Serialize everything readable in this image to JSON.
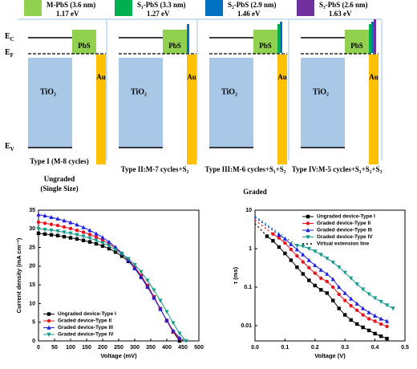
{
  "legend": [
    {
      "name": "M-PbS (3.6 nm)",
      "energy": "1.17 eV",
      "color": "#92d050"
    },
    {
      "name": "S₁-PbS (3.3 nm)",
      "energy": "1.27 eV",
      "color": "#00b050"
    },
    {
      "name": "S₂-PbS (2.9 nm)",
      "energy": "1.46 eV",
      "color": "#0070c0"
    },
    {
      "name": "S₃-PbS (2.6 nm)",
      "energy": "1.63 eV",
      "color": "#7030a0"
    }
  ],
  "levels": {
    "symbol": "E",
    "conduction": "C",
    "fermi": "F",
    "valence": "V"
  },
  "materials": {
    "tio2": "TiO₂",
    "pbs": "PbS",
    "au": "Au"
  },
  "panels": [
    {
      "caption": "Type I (M-8 cycles)"
    },
    {
      "caption": "Type II:M-7 cycles+S₂"
    },
    {
      "caption": "Type III:M-6 cycles+S₁+S₂"
    },
    {
      "caption": "Type IV:M-5 cycles+S₁+S₂+S₃"
    }
  ],
  "groups": {
    "ungraded": "Ungraded",
    "ungraded_note": "(Single Size)",
    "graded": "Graded"
  },
  "chart_data": [
    {
      "type": "line",
      "xlabel": "Voltage (mV)",
      "ylabel": "Current density (mA cm⁻²)",
      "xlim": [
        0,
        500
      ],
      "xticks": [
        0,
        50,
        100,
        150,
        200,
        250,
        300,
        350,
        400,
        450,
        500
      ],
      "ylim": [
        0,
        35
      ],
      "yticks": [
        0,
        5,
        10,
        15,
        20,
        25,
        30,
        35
      ],
      "legend": "lower-left",
      "x": [
        0,
        20,
        40,
        60,
        80,
        100,
        120,
        140,
        160,
        180,
        200,
        220,
        240,
        260,
        280,
        300,
        320,
        340,
        360,
        380,
        400,
        420,
        440,
        460
      ],
      "series": [
        {
          "name": "Ungraded device-Type I",
          "color": "#000000",
          "marker": "square",
          "values": [
            28.8,
            28.6,
            28.4,
            28.2,
            27.9,
            27.6,
            27.3,
            26.9,
            26.5,
            26.0,
            25.4,
            24.7,
            23.8,
            22.7,
            21.3,
            19.6,
            17.4,
            14.8,
            11.8,
            8.6,
            5.4,
            2.4,
            0,
            null
          ]
        },
        {
          "name": "Graded device-Type II",
          "color": "#e8141b",
          "marker": "circle",
          "values": [
            31.8,
            31.5,
            31.2,
            30.9,
            30.5,
            30.1,
            29.6,
            29.1,
            28.5,
            27.8,
            27.0,
            26.0,
            24.8,
            23.4,
            21.8,
            19.8,
            17.5,
            14.8,
            11.8,
            8.6,
            5.4,
            2.4,
            0.6,
            null
          ]
        },
        {
          "name": "Graded device-Type III",
          "color": "#1f1fe0",
          "marker": "triangle",
          "values": [
            33.8,
            33.5,
            33.1,
            32.7,
            32.2,
            31.7,
            31.1,
            30.4,
            29.6,
            28.7,
            27.7,
            26.5,
            25.1,
            23.5,
            21.6,
            19.4,
            17.0,
            14.4,
            11.5,
            8.5,
            5.5,
            2.7,
            0.8,
            null
          ]
        },
        {
          "name": "Graded device-Type IV",
          "color": "#169c8c",
          "marker": "triangle-down",
          "values": [
            30.0,
            29.8,
            29.6,
            29.4,
            29.1,
            28.8,
            28.4,
            28.0,
            27.5,
            26.9,
            26.2,
            25.4,
            24.4,
            23.3,
            22.0,
            20.4,
            18.5,
            16.2,
            13.6,
            10.8,
            7.8,
            4.8,
            2.0,
            0
          ]
        }
      ]
    },
    {
      "type": "line",
      "xlabel": "Voltage (V)",
      "ylabel": "τ (ms)",
      "xlim": [
        0,
        0.5
      ],
      "xticks": [
        {
          "value": 0,
          "label": "0.0"
        },
        0.1,
        0.2,
        0.3,
        0.4,
        0.5
      ],
      "ylim": [
        0.004,
        10
      ],
      "yticks": [
        0.01,
        0.1,
        1,
        10
      ],
      "log_y": true,
      "legend": "upper-right",
      "extension_label": "Virtual extension line",
      "series": [
        {
          "name": "Ungraded device-Type I",
          "color": "#000000",
          "marker": "square",
          "x": [
            0.04,
            0.06,
            0.08,
            0.1,
            0.12,
            0.14,
            0.16,
            0.18,
            0.2,
            0.22,
            0.24,
            0.26,
            0.28,
            0.3,
            0.32,
            0.34,
            0.36,
            0.38,
            0.4,
            0.42,
            0.44
          ],
          "values": [
            2.1,
            1.6,
            1.1,
            0.75,
            0.5,
            0.33,
            0.22,
            0.15,
            0.11,
            0.085,
            0.07,
            0.045,
            0.028,
            0.019,
            0.014,
            0.011,
            0.009,
            0.0075,
            0.0062,
            0.0053,
            0.0046
          ],
          "extension_x": [
            0,
            0.04
          ],
          "extension_values": [
            4.5,
            2.1
          ]
        },
        {
          "name": "Graded device-Type II",
          "color": "#e8141b",
          "marker": "circle",
          "x": [
            0.06,
            0.08,
            0.1,
            0.12,
            0.14,
            0.16,
            0.18,
            0.2,
            0.22,
            0.24,
            0.26,
            0.28,
            0.3,
            0.32,
            0.34,
            0.36,
            0.38,
            0.4,
            0.42,
            0.44
          ],
          "values": [
            2.4,
            1.9,
            1.4,
            0.95,
            0.65,
            0.45,
            0.32,
            0.23,
            0.17,
            0.14,
            0.1,
            0.065,
            0.045,
            0.033,
            0.025,
            0.019,
            0.015,
            0.013,
            0.011,
            0.0095
          ],
          "extension_x": [
            0,
            0.06
          ],
          "extension_values": [
            5.5,
            2.4
          ]
        },
        {
          "name": "Graded device-Type III",
          "color": "#1f1fe0",
          "marker": "triangle",
          "x": [
            0.08,
            0.1,
            0.12,
            0.14,
            0.16,
            0.18,
            0.2,
            0.22,
            0.24,
            0.26,
            0.28,
            0.3,
            0.32,
            0.34,
            0.36,
            0.38,
            0.4,
            0.42,
            0.44
          ],
          "values": [
            2.3,
            1.8,
            1.3,
            0.95,
            0.7,
            0.5,
            0.37,
            0.28,
            0.22,
            0.16,
            0.1,
            0.07,
            0.05,
            0.037,
            0.028,
            0.022,
            0.018,
            0.015,
            0.013
          ],
          "extension_x": [
            0,
            0.08
          ],
          "extension_values": [
            6.5,
            2.3
          ]
        },
        {
          "name": "Graded device-Type IV",
          "color": "#169c8c",
          "marker": "triangle-down",
          "x": [
            0.14,
            0.16,
            0.18,
            0.2,
            0.22,
            0.24,
            0.26,
            0.28,
            0.3,
            0.32,
            0.34,
            0.36,
            0.38,
            0.4,
            0.42,
            0.44,
            0.46
          ],
          "values": [
            1.2,
            1.15,
            1.0,
            0.85,
            0.7,
            0.56,
            0.44,
            0.33,
            0.24,
            0.17,
            0.12,
            0.088,
            0.066,
            0.052,
            0.042,
            0.034,
            0.028
          ],
          "extension_x": [
            0,
            0.14
          ],
          "extension_values": [
            7,
            1.2
          ]
        }
      ]
    }
  ]
}
